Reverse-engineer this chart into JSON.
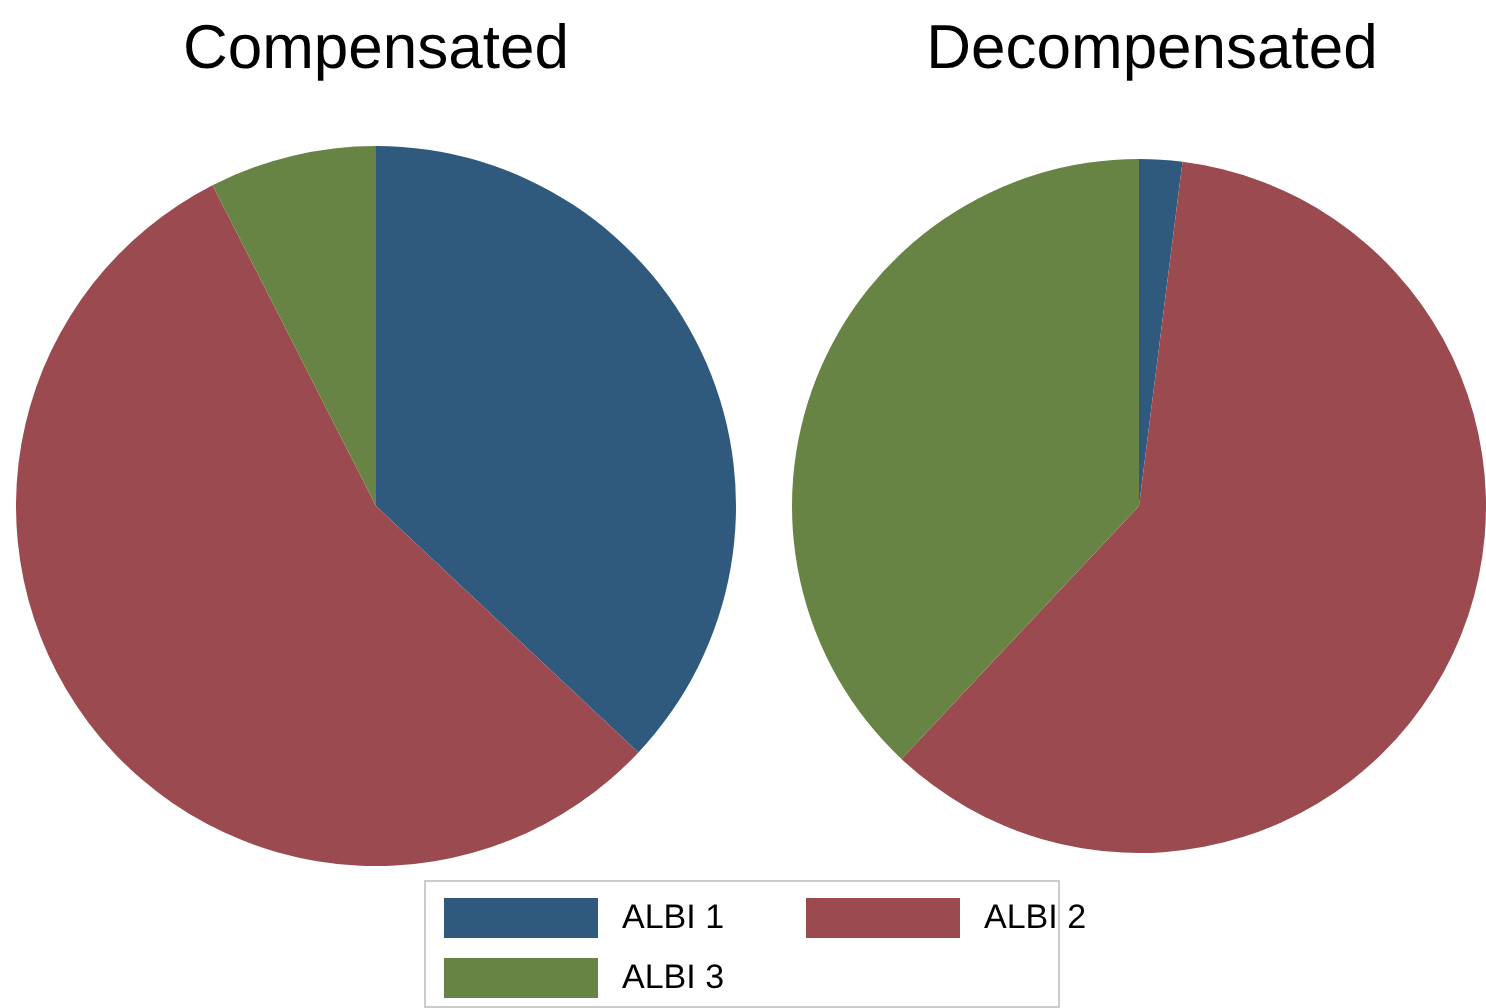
{
  "chart_data": [
    {
      "type": "pie",
      "title": "Compensated",
      "categories": [
        "ALBI 1",
        "ALBI 2",
        "ALBI 3"
      ],
      "values": [
        37,
        55.5,
        7.5
      ],
      "colors": [
        "#2f5a7d",
        "#9b4a50",
        "#678444"
      ],
      "legend": "bottom"
    },
    {
      "type": "pie",
      "title": "Decompensated",
      "values": [
        2,
        60,
        38
      ],
      "colors": [
        "#2f5a7d",
        "#9b4a50",
        "#678444"
      ]
    }
  ]
}
